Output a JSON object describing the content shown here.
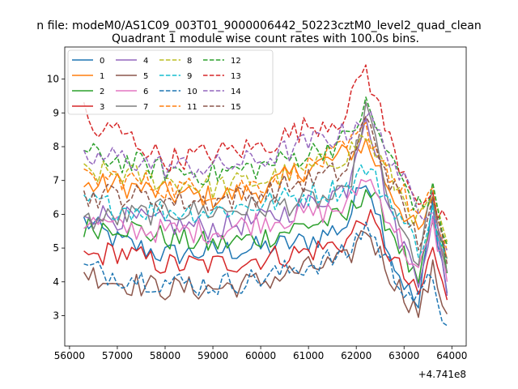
{
  "chart_data": {
    "type": "line",
    "suptitle": "n file: modeM0/AS1C09_003T01_9000006442_50223cztM0_level2_quad_clean",
    "title": "Quadrant 1 module wise count rates with 100.0s bins.",
    "xlabel": "",
    "ylabel": "",
    "x_offset_label": "+4.741e8",
    "xlim": [
      55900,
      64300
    ],
    "ylim": [
      2.1,
      10.95
    ],
    "xticks": [
      56000,
      57000,
      58000,
      59000,
      60000,
      61000,
      62000,
      63000,
      64000
    ],
    "yticks": [
      3,
      4,
      5,
      6,
      7,
      8,
      9,
      10
    ],
    "x_start": 56300,
    "x_step": 100,
    "legend_position": "upper-left",
    "series": [
      {
        "name": "0",
        "color": "#1f77b4",
        "dashed": false,
        "anchors": [
          [
            56300,
            5.8
          ],
          [
            57000,
            5.2
          ],
          [
            58000,
            4.8
          ],
          [
            59000,
            4.9
          ],
          [
            60000,
            5.0
          ],
          [
            61000,
            5.2
          ],
          [
            61800,
            5.7
          ],
          [
            62200,
            7.2
          ],
          [
            62800,
            4.5
          ],
          [
            63300,
            3.2
          ],
          [
            63600,
            6.3
          ],
          [
            63900,
            3.7
          ]
        ]
      },
      {
        "name": "1",
        "color": "#ff7f0e",
        "dashed": false,
        "anchors": [
          [
            56300,
            6.8
          ],
          [
            57000,
            6.9
          ],
          [
            58000,
            6.6
          ],
          [
            59000,
            6.5
          ],
          [
            60000,
            6.7
          ],
          [
            61000,
            7.4
          ],
          [
            61500,
            7.6
          ],
          [
            62200,
            8.1
          ],
          [
            62800,
            6.5
          ],
          [
            63300,
            5.4
          ],
          [
            63600,
            6.3
          ],
          [
            63900,
            4.7
          ]
        ]
      },
      {
        "name": "2",
        "color": "#2ca02c",
        "dashed": false,
        "anchors": [
          [
            56300,
            5.6
          ],
          [
            57000,
            5.7
          ],
          [
            58000,
            5.3
          ],
          [
            59000,
            5.1
          ],
          [
            60000,
            5.3
          ],
          [
            61000,
            5.7
          ],
          [
            61800,
            5.9
          ],
          [
            62200,
            6.8
          ],
          [
            62800,
            5.4
          ],
          [
            63300,
            3.8
          ],
          [
            63600,
            5.8
          ],
          [
            63900,
            4.4
          ]
        ]
      },
      {
        "name": "3",
        "color": "#d62728",
        "dashed": false,
        "anchors": [
          [
            56300,
            4.7
          ],
          [
            57000,
            4.9
          ],
          [
            58000,
            4.5
          ],
          [
            59000,
            4.5
          ],
          [
            60000,
            4.7
          ],
          [
            61000,
            4.9
          ],
          [
            61800,
            5.2
          ],
          [
            62200,
            6.0
          ],
          [
            62800,
            4.6
          ],
          [
            63300,
            3.5
          ],
          [
            63600,
            5.0
          ],
          [
            63900,
            3.3
          ]
        ]
      },
      {
        "name": "4",
        "color": "#9467bd",
        "dashed": false,
        "anchors": [
          [
            56300,
            6.1
          ],
          [
            57000,
            5.9
          ],
          [
            58000,
            5.7
          ],
          [
            59000,
            5.6
          ],
          [
            60000,
            5.8
          ],
          [
            61000,
            6.3
          ],
          [
            61800,
            6.8
          ],
          [
            62200,
            9.1
          ],
          [
            62800,
            5.6
          ],
          [
            63300,
            4.2
          ],
          [
            63600,
            5.8
          ],
          [
            63900,
            3.8
          ]
        ]
      },
      {
        "name": "5",
        "color": "#8c564b",
        "dashed": false,
        "anchors": [
          [
            56300,
            4.3
          ],
          [
            57000,
            4.0
          ],
          [
            58000,
            3.8
          ],
          [
            59000,
            3.8
          ],
          [
            60000,
            4.0
          ],
          [
            61000,
            4.4
          ],
          [
            61800,
            4.6
          ],
          [
            62200,
            5.6
          ],
          [
            62800,
            4.0
          ],
          [
            63300,
            3.1
          ],
          [
            63600,
            4.3
          ],
          [
            63900,
            3.1
          ]
        ]
      },
      {
        "name": "6",
        "color": "#e377c2",
        "dashed": false,
        "anchors": [
          [
            56300,
            5.8
          ],
          [
            57000,
            5.6
          ],
          [
            58000,
            5.5
          ],
          [
            59000,
            5.5
          ],
          [
            60000,
            5.8
          ],
          [
            61000,
            6.0
          ],
          [
            61800,
            6.2
          ],
          [
            62200,
            7.2
          ],
          [
            62800,
            5.6
          ],
          [
            63300,
            4.2
          ],
          [
            63600,
            5.6
          ],
          [
            63900,
            4.3
          ]
        ]
      },
      {
        "name": "7",
        "color": "#7f7f7f",
        "dashed": false,
        "anchors": [
          [
            56300,
            5.8
          ],
          [
            57000,
            5.9
          ],
          [
            58000,
            6.1
          ],
          [
            59000,
            6.1
          ],
          [
            60000,
            6.2
          ],
          [
            61000,
            6.4
          ],
          [
            61800,
            6.5
          ],
          [
            62200,
            9.2
          ],
          [
            62800,
            5.8
          ],
          [
            63300,
            4.6
          ],
          [
            63600,
            6.6
          ],
          [
            63900,
            4.0
          ]
        ]
      },
      {
        "name": "8",
        "color": "#bcbd22",
        "dashed": true,
        "anchors": [
          [
            56300,
            7.2
          ],
          [
            57000,
            7.2
          ],
          [
            58000,
            7.0
          ],
          [
            59000,
            6.8
          ],
          [
            60000,
            7.0
          ],
          [
            61000,
            7.3
          ],
          [
            61800,
            7.8
          ],
          [
            62200,
            8.3
          ],
          [
            62800,
            6.9
          ],
          [
            63300,
            5.8
          ],
          [
            63600,
            6.4
          ],
          [
            63900,
            4.9
          ]
        ]
      },
      {
        "name": "9",
        "color": "#17becf",
        "dashed": true,
        "anchors": [
          [
            56300,
            6.4
          ],
          [
            57000,
            6.2
          ],
          [
            58000,
            6.1
          ],
          [
            59000,
            6.1
          ],
          [
            60000,
            6.3
          ],
          [
            61000,
            6.6
          ],
          [
            61800,
            6.8
          ],
          [
            62200,
            7.4
          ],
          [
            62800,
            6.2
          ],
          [
            63300,
            5.0
          ],
          [
            63600,
            6.0
          ],
          [
            63900,
            4.5
          ]
        ]
      },
      {
        "name": "10",
        "color": "#1f77b4",
        "dashed": true,
        "anchors": [
          [
            56300,
            4.4
          ],
          [
            57000,
            4.2
          ],
          [
            58000,
            4.0
          ],
          [
            59000,
            3.9
          ],
          [
            60000,
            4.1
          ],
          [
            61000,
            4.5
          ],
          [
            61800,
            4.8
          ],
          [
            62200,
            5.7
          ],
          [
            62800,
            4.2
          ],
          [
            63300,
            3.4
          ],
          [
            63600,
            4.2
          ],
          [
            63900,
            2.5
          ]
        ]
      },
      {
        "name": "11",
        "color": "#ff7f0e",
        "dashed": true,
        "anchors": [
          [
            56300,
            7.0
          ],
          [
            57000,
            7.1
          ],
          [
            58000,
            6.8
          ],
          [
            59000,
            6.7
          ],
          [
            60000,
            6.9
          ],
          [
            61000,
            7.4
          ],
          [
            61800,
            7.9
          ],
          [
            62200,
            8.5
          ],
          [
            62800,
            7.0
          ],
          [
            63300,
            5.9
          ],
          [
            63600,
            6.5
          ],
          [
            63900,
            5.0
          ]
        ]
      },
      {
        "name": "12",
        "color": "#2ca02c",
        "dashed": true,
        "anchors": [
          [
            56300,
            7.8
          ],
          [
            57000,
            7.6
          ],
          [
            58000,
            7.3
          ],
          [
            59000,
            7.2
          ],
          [
            60000,
            7.4
          ],
          [
            61000,
            7.8
          ],
          [
            61800,
            8.2
          ],
          [
            62200,
            9.2
          ],
          [
            62800,
            7.4
          ],
          [
            63300,
            6.2
          ],
          [
            63600,
            6.6
          ],
          [
            63900,
            5.2
          ]
        ]
      },
      {
        "name": "13",
        "color": "#d62728",
        "dashed": true,
        "anchors": [
          [
            56300,
            9.1
          ],
          [
            56500,
            8.4
          ],
          [
            57000,
            8.5
          ],
          [
            58000,
            7.6
          ],
          [
            59000,
            7.8
          ],
          [
            60000,
            8.0
          ],
          [
            61000,
            8.6
          ],
          [
            61800,
            8.9
          ],
          [
            62150,
            10.5
          ],
          [
            62800,
            7.8
          ],
          [
            63300,
            6.5
          ],
          [
            63600,
            6.3
          ],
          [
            63900,
            5.5
          ]
        ]
      },
      {
        "name": "14",
        "color": "#9467bd",
        "dashed": true,
        "anchors": [
          [
            56300,
            7.6
          ],
          [
            57000,
            7.7
          ],
          [
            58000,
            7.4
          ],
          [
            59000,
            7.4
          ],
          [
            60000,
            7.6
          ],
          [
            61000,
            8.1
          ],
          [
            61800,
            8.4
          ],
          [
            62200,
            9.0
          ],
          [
            62800,
            7.5
          ],
          [
            63300,
            6.0
          ],
          [
            63600,
            6.4
          ],
          [
            63900,
            5.0
          ]
        ]
      },
      {
        "name": "15",
        "color": "#8c564b",
        "dashed": true,
        "anchors": [
          [
            56300,
            6.5
          ],
          [
            57000,
            6.6
          ],
          [
            58000,
            6.4
          ],
          [
            59000,
            6.4
          ],
          [
            60000,
            6.6
          ],
          [
            61000,
            7.0
          ],
          [
            61800,
            7.3
          ],
          [
            62200,
            8.8
          ],
          [
            62800,
            6.7
          ],
          [
            63300,
            5.2
          ],
          [
            63600,
            6.2
          ],
          [
            63900,
            4.6
          ]
        ]
      }
    ]
  }
}
